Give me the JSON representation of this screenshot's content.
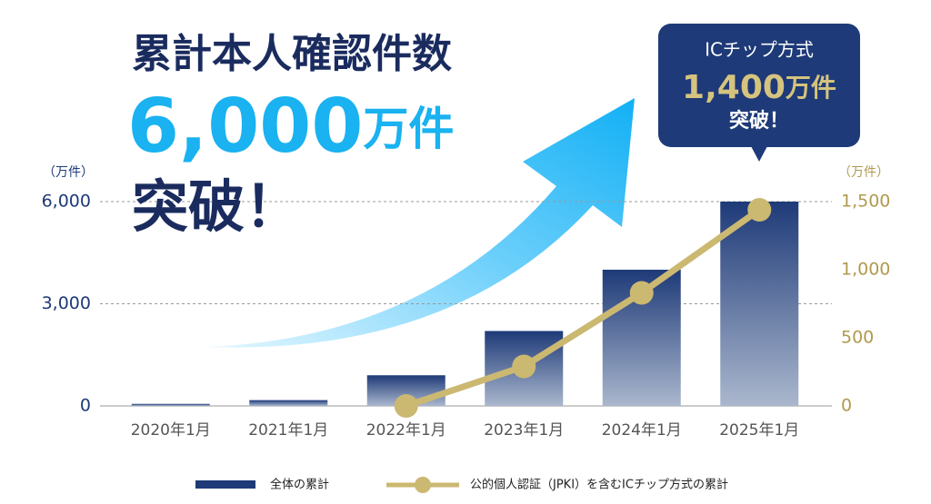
{
  "headline": {
    "line1": "累計本人確認件数",
    "number": "6,000",
    "unit": "万件",
    "line3": "突破！"
  },
  "callout": {
    "line1": "ICチップ方式",
    "number": "1,400",
    "unit": "万件",
    "line3": "突破！"
  },
  "chart_data": {
    "type": "bar_line",
    "y_label": "（万件）",
    "y2_label": "（万件）",
    "categories": [
      "2020年1月",
      "2021年1月",
      "2022年1月",
      "2023年1月",
      "2024年1月",
      "2025年1月"
    ],
    "series": [
      {
        "name": "全体の累計",
        "type": "bar",
        "color": "#1e3a78",
        "axis": "y",
        "values": [
          60,
          170,
          900,
          2200,
          4000,
          6000
        ]
      },
      {
        "name": "公的個人認証（JPKI）を含むICチップ方式の累計",
        "type": "line",
        "color": "#cbb871",
        "axis": "y2",
        "values": [
          null,
          null,
          0,
          290,
          830,
          1440
        ]
      }
    ],
    "ylim": [
      0,
      6000
    ],
    "yticks": [
      0,
      {
        "value": 3000,
        "label": "3,000"
      },
      {
        "value": 6000,
        "label": "6,000"
      }
    ],
    "y2lim": [
      0,
      1500
    ],
    "y2ticks": [
      0,
      500,
      {
        "value": 1000,
        "label": "1,000"
      },
      {
        "value": 1500,
        "label": "1,500"
      }
    ],
    "grid": true
  }
}
